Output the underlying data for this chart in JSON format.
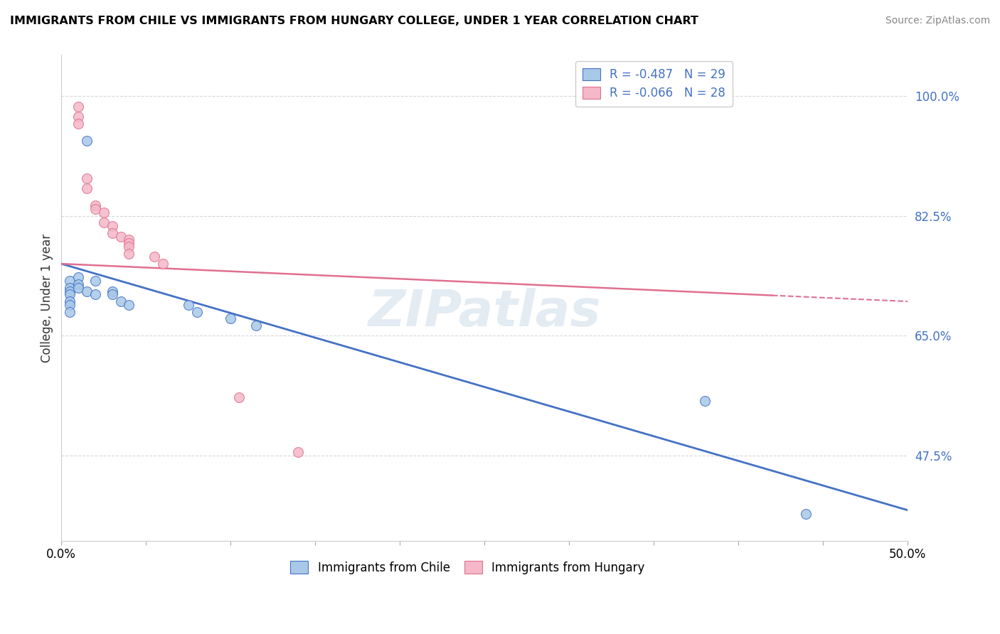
{
  "title": "IMMIGRANTS FROM CHILE VS IMMIGRANTS FROM HUNGARY COLLEGE, UNDER 1 YEAR CORRELATION CHART",
  "source": "Source: ZipAtlas.com",
  "ylabel": "College, Under 1 year",
  "legend_entries": [
    {
      "label": "R = -0.487   N = 29",
      "color": "#a8c8e8"
    },
    {
      "label": "R = -0.066   N = 28",
      "color": "#f4b8c8"
    }
  ],
  "legend_bottom": [
    {
      "label": "Immigrants from Chile",
      "color": "#a8c8e8"
    },
    {
      "label": "Immigrants from Hungary",
      "color": "#f4b8c8"
    }
  ],
  "xlim": [
    0.0,
    0.5
  ],
  "ylim": [
    0.35,
    1.06
  ],
  "xticks": [
    0.0,
    0.05,
    0.1,
    0.15,
    0.2,
    0.25,
    0.3,
    0.35,
    0.4,
    0.45,
    0.5
  ],
  "xticklabels": [
    "0.0%",
    "",
    "",
    "",
    "",
    "",
    "",
    "",
    "",
    "",
    "50.0%"
  ],
  "yticks_right": [
    0.475,
    0.65,
    0.825,
    1.0
  ],
  "ytick_right_labels": [
    "47.5%",
    "65.0%",
    "82.5%",
    "100.0%"
  ],
  "chile_scatter_x": [
    0.015,
    0.005,
    0.005,
    0.005,
    0.005,
    0.005,
    0.005,
    0.005,
    0.01,
    0.01,
    0.01,
    0.015,
    0.02,
    0.02,
    0.03,
    0.03,
    0.035,
    0.04,
    0.075,
    0.08,
    0.1,
    0.115,
    0.38,
    0.44
  ],
  "chile_scatter_y": [
    0.935,
    0.73,
    0.72,
    0.715,
    0.71,
    0.7,
    0.695,
    0.685,
    0.735,
    0.725,
    0.72,
    0.715,
    0.73,
    0.71,
    0.715,
    0.71,
    0.7,
    0.695,
    0.695,
    0.685,
    0.675,
    0.665,
    0.555,
    0.39
  ],
  "hungary_scatter_x": [
    0.01,
    0.01,
    0.01,
    0.015,
    0.015,
    0.02,
    0.02,
    0.025,
    0.025,
    0.03,
    0.03,
    0.035,
    0.04,
    0.04,
    0.04,
    0.04,
    0.055,
    0.06,
    0.105,
    0.14
  ],
  "hungary_scatter_y": [
    0.985,
    0.97,
    0.96,
    0.88,
    0.865,
    0.84,
    0.835,
    0.83,
    0.815,
    0.81,
    0.8,
    0.795,
    0.79,
    0.785,
    0.78,
    0.77,
    0.765,
    0.755,
    0.56,
    0.48
  ],
  "chile_line_x": [
    0.0,
    0.5
  ],
  "chile_line_y": [
    0.755,
    0.395
  ],
  "hungary_line_x": [
    0.0,
    0.5
  ],
  "hungary_line_y": [
    0.755,
    0.7
  ],
  "hungary_line_solid_end": 0.42,
  "scatter_size": 100,
  "chile_color": "#a8c8e8",
  "hungary_color": "#f4b8c8",
  "chile_line_color": "#4472c4",
  "hungary_line_color": "#e07090",
  "background_color": "#ffffff",
  "grid_color": "#d8d8d8",
  "title_color": "#000000",
  "source_color": "#888888"
}
